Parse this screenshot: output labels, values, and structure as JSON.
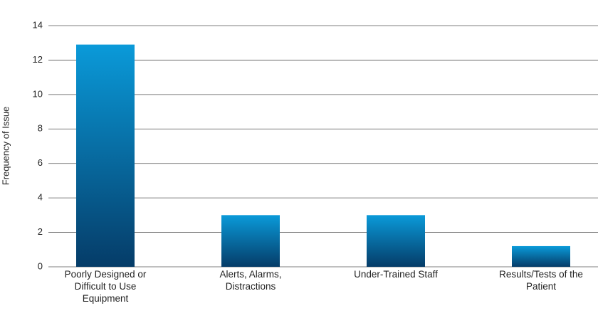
{
  "chart_data": {
    "type": "bar",
    "y_label": "Frequency of Issue",
    "categories": [
      "Poorly Designed or Difficult to Use Equipment",
      "Alerts, Alarms, Distractions",
      "Under-Trained Staff",
      "Results/Tests of the Patient"
    ],
    "values": [
      12.9,
      3,
      3,
      1.2
    ],
    "gradient": [
      "#0a9ad9",
      "#053c68"
    ],
    "ylim": [
      0,
      14
    ],
    "yticks": [
      0,
      2,
      4,
      6,
      8,
      10,
      12,
      14
    ],
    "grid": true
  }
}
